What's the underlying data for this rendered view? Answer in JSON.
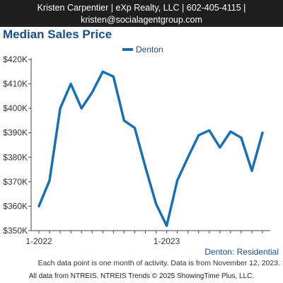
{
  "agent": {
    "line1": "Kristen Carpentier | eXp Realty, LLC | 602-405-4115 |",
    "line2": "kristen@socialagentgroup.com"
  },
  "chart_title": "Median Sales Price",
  "chart_subtitle": "Denton: Residential",
  "footnote": "Each data point is one month of activity. Data is from November 12, 2023.",
  "copyright": "All data from NTREIS. NTREIS Trends © 2025 ShowingTime Plus, LLC.",
  "colors": {
    "series": "#1a6fb0",
    "title": "#1c4f82",
    "header_bg": "#1f1f1f"
  },
  "chart_data": {
    "type": "line",
    "title": "Median Sales Price",
    "xlabel": "",
    "ylabel": "",
    "x_ticks": [
      "1-2022",
      "1-2023"
    ],
    "y_ticks": [
      "$350K",
      "$360K",
      "$370K",
      "$380K",
      "$390K",
      "$400K",
      "$410K",
      "$420K"
    ],
    "ylim": [
      350000,
      420000
    ],
    "grid": false,
    "legend": "top-center",
    "series": [
      {
        "name": "Denton",
        "x": [
          "2022-01",
          "2022-02",
          "2022-03",
          "2022-04",
          "2022-05",
          "2022-06",
          "2022-07",
          "2022-08",
          "2022-09",
          "2022-10",
          "2022-11",
          "2022-12",
          "2023-01",
          "2023-02",
          "2023-03",
          "2023-04",
          "2023-05",
          "2023-06",
          "2023-07",
          "2023-08",
          "2023-09",
          "2023-10"
        ],
        "values": [
          360000,
          370500,
          400000,
          410000,
          400000,
          406500,
          415000,
          413000,
          395000,
          392000,
          376000,
          361000,
          352000,
          370500,
          380000,
          389000,
          391000,
          384000,
          390500,
          388000,
          374500,
          390000
        ]
      }
    ]
  }
}
